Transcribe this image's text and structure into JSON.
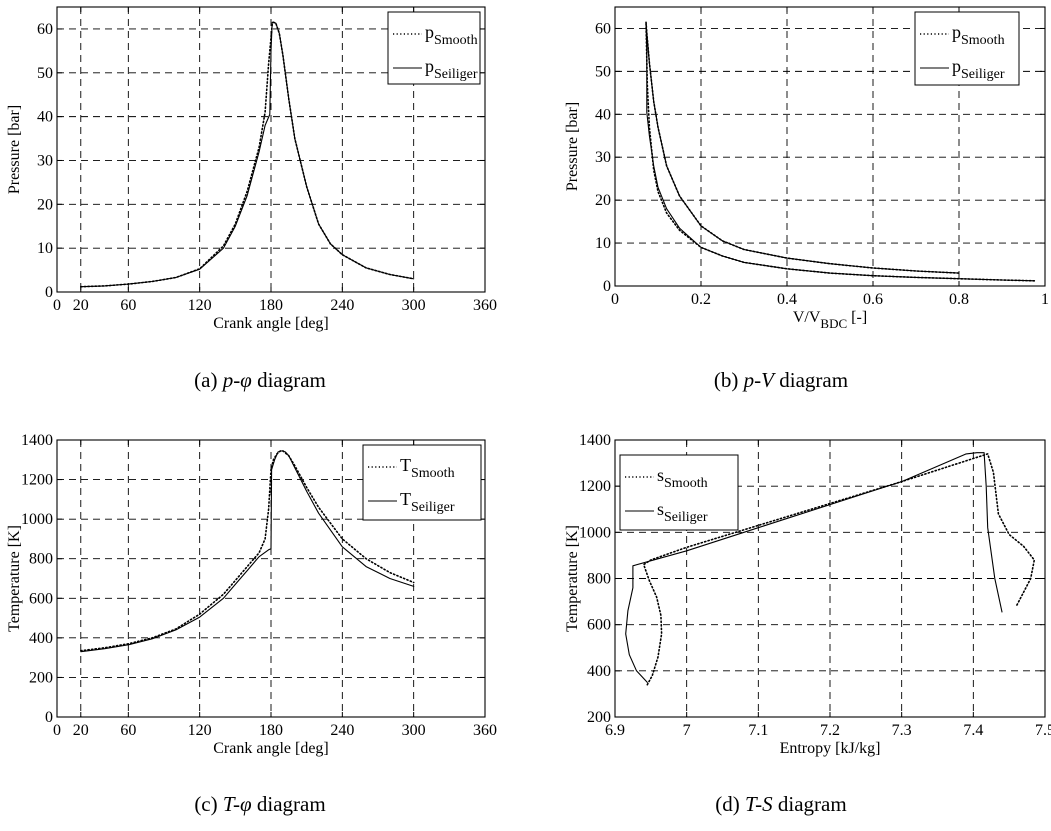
{
  "captions": [
    {
      "label": "(a)",
      "italic": "p-φ",
      "rest": " diagram"
    },
    {
      "label": "(b)",
      "italic": "p-V",
      "rest": " diagram"
    },
    {
      "label": "(c)",
      "italic": "T-φ",
      "rest": " diagram"
    },
    {
      "label": "(d)",
      "italic": "T-S",
      "rest": " diagram"
    }
  ],
  "chart_data": [
    {
      "type": "line",
      "xlabel": "Crank angle [deg]",
      "ylabel": "Pressure [bar]",
      "xlim": [
        0,
        360
      ],
      "ylim": [
        0,
        65
      ],
      "xticks": [
        0,
        20,
        60,
        120,
        180,
        240,
        300,
        360
      ],
      "xtick_labels": [
        "0",
        "20",
        "60",
        "120",
        "180",
        "240",
        "300",
        "360"
      ],
      "yticks": [
        0,
        10,
        20,
        30,
        40,
        50,
        60
      ],
      "grid": true,
      "legend": "top-right",
      "series": [
        {
          "base": "p",
          "sub": "Smooth",
          "style": "dotted",
          "x": [
            20,
            40,
            60,
            80,
            100,
            120,
            140,
            150,
            160,
            170,
            175,
            178,
            180,
            181,
            182,
            184,
            187,
            190,
            195,
            200,
            210,
            220,
            230,
            240,
            260,
            280,
            300
          ],
          "y": [
            1.2,
            1.4,
            1.8,
            2.4,
            3.3,
            5.3,
            10.5,
            15.5,
            23,
            33,
            41,
            52,
            58,
            61,
            61.5,
            61.3,
            59,
            54,
            44,
            35,
            24,
            15.5,
            11,
            8.5,
            5.5,
            4,
            3
          ]
        },
        {
          "base": "p",
          "sub": "Seiliger",
          "style": "solid",
          "x": [
            20,
            40,
            60,
            80,
            100,
            120,
            140,
            150,
            160,
            170,
            175,
            179,
            180,
            181,
            182,
            184,
            187,
            190,
            195,
            200,
            210,
            220,
            230,
            240,
            260,
            280,
            300
          ],
          "y": [
            1.2,
            1.4,
            1.8,
            2.4,
            3.3,
            5.2,
            10,
            15,
            22,
            32,
            38,
            40.5,
            55,
            61.5,
            61.5,
            61.3,
            59,
            54,
            44,
            35,
            24,
            15.5,
            11,
            8.5,
            5.5,
            4,
            3
          ]
        }
      ]
    },
    {
      "type": "line",
      "xlabel": "V/V",
      "xlabel_sub": "BDC",
      "xlabel_suffix": " [-]",
      "ylabel": "Pressure [bar]",
      "xlim": [
        0,
        1
      ],
      "ylim": [
        0,
        65
      ],
      "xticks": [
        0,
        0.2,
        0.4,
        0.6,
        0.8,
        1
      ],
      "xtick_labels": [
        "0",
        "0.2",
        "0.4",
        "0.6",
        "0.8",
        "1"
      ],
      "yticks": [
        0,
        10,
        20,
        30,
        40,
        50,
        60
      ],
      "grid": true,
      "legend": "top-right",
      "series": [
        {
          "base": "p",
          "sub": "Smooth",
          "style": "dotted",
          "x": [
            0.975,
            0.9,
            0.8,
            0.7,
            0.6,
            0.5,
            0.4,
            0.3,
            0.25,
            0.2,
            0.15,
            0.12,
            0.1,
            0.09,
            0.08,
            0.075,
            0.072,
            0.074,
            0.08,
            0.09,
            0.1,
            0.12,
            0.15,
            0.2,
            0.25,
            0.3,
            0.4,
            0.5,
            0.6,
            0.7,
            0.8
          ],
          "y": [
            1.2,
            1.4,
            1.7,
            2,
            2.4,
            3,
            4,
            5.5,
            7,
            9,
            13,
            17,
            22,
            27,
            37,
            47,
            61.5,
            59,
            52,
            43,
            37,
            28,
            21,
            14,
            10.5,
            8.5,
            6.5,
            5.2,
            4.2,
            3.5,
            3
          ]
        },
        {
          "base": "p",
          "sub": "Seiliger",
          "style": "solid",
          "x": [
            0.975,
            0.9,
            0.8,
            0.7,
            0.6,
            0.5,
            0.4,
            0.3,
            0.25,
            0.2,
            0.15,
            0.12,
            0.1,
            0.09,
            0.08,
            0.074,
            0.074,
            0.072,
            0.074,
            0.08,
            0.09,
            0.1,
            0.12,
            0.15,
            0.2,
            0.25,
            0.3,
            0.4,
            0.5,
            0.6,
            0.7,
            0.8
          ],
          "y": [
            1.2,
            1.4,
            1.7,
            2,
            2.4,
            3,
            4,
            5.5,
            7,
            9,
            13.5,
            18,
            23,
            28,
            35,
            40.5,
            55,
            61.5,
            59,
            52,
            43,
            37,
            28,
            21,
            14,
            10.5,
            8.5,
            6.5,
            5.2,
            4.2,
            3.5,
            3
          ]
        }
      ]
    },
    {
      "type": "line",
      "xlabel": "Crank angle [deg]",
      "ylabel": "Temperature [K]",
      "xlim": [
        0,
        360
      ],
      "ylim": [
        0,
        1400
      ],
      "xticks": [
        0,
        20,
        60,
        120,
        180,
        240,
        300,
        360
      ],
      "xtick_labels": [
        "0",
        "20",
        "60",
        "120",
        "180",
        "240",
        "300",
        "360"
      ],
      "yticks": [
        0,
        200,
        400,
        600,
        800,
        1000,
        1200,
        1400
      ],
      "grid": true,
      "legend": "top-right",
      "series": [
        {
          "base": "T",
          "sub": "Smooth",
          "style": "dotted",
          "x": [
            20,
            40,
            60,
            80,
            100,
            120,
            140,
            150,
            160,
            170,
            175,
            178,
            180,
            182,
            185,
            188,
            190,
            195,
            200,
            210,
            220,
            240,
            260,
            280,
            300
          ],
          "y": [
            335,
            350,
            370,
            400,
            445,
            520,
            620,
            690,
            760,
            830,
            900,
            1050,
            1250,
            1300,
            1330,
            1345,
            1345,
            1320,
            1270,
            1160,
            1060,
            900,
            800,
            730,
            680
          ]
        },
        {
          "base": "T",
          "sub": "Seiliger",
          "style": "solid",
          "x": [
            20,
            40,
            60,
            80,
            100,
            120,
            140,
            150,
            160,
            170,
            178,
            180,
            180.5,
            183,
            186,
            189,
            192,
            195,
            200,
            210,
            220,
            240,
            260,
            280,
            300
          ],
          "y": [
            330,
            345,
            365,
            395,
            440,
            505,
            600,
            670,
            740,
            810,
            845,
            850,
            1250,
            1300,
            1340,
            1345,
            1340,
            1320,
            1260,
            1140,
            1030,
            860,
            760,
            700,
            660
          ]
        }
      ]
    },
    {
      "type": "line",
      "xlabel": "Entropy [kJ/kg]",
      "ylabel": "Temperature [K]",
      "xlim": [
        6.9,
        7.5
      ],
      "ylim": [
        200,
        1400
      ],
      "xticks": [
        6.9,
        7,
        7.1,
        7.2,
        7.3,
        7.4,
        7.5
      ],
      "xtick_labels": [
        "6.9",
        "7",
        "7.1",
        "7.2",
        "7.3",
        "7.4",
        "7.5"
      ],
      "yticks": [
        200,
        400,
        600,
        800,
        1000,
        1200,
        1400
      ],
      "grid": true,
      "legend": "top-left",
      "series": [
        {
          "base": "s",
          "sub": "Smooth",
          "style": "dotted",
          "x": [
            6.945,
            6.952,
            6.96,
            6.965,
            6.964,
            6.958,
            6.948,
            6.94,
            6.95,
            7.0,
            7.1,
            7.2,
            7.3,
            7.4,
            7.42,
            7.428,
            7.435,
            7.45,
            7.47,
            7.485,
            7.48,
            7.47,
            7.46
          ],
          "y": [
            340,
            380,
            460,
            560,
            640,
            720,
            790,
            860,
            880,
            935,
            1030,
            1125,
            1220,
            1320,
            1340,
            1260,
            1080,
            990,
            940,
            880,
            800,
            740,
            680
          ]
        },
        {
          "base": "s",
          "sub": "Seiliger",
          "style": "solid",
          "x": [
            6.945,
            6.93,
            6.92,
            6.915,
            6.918,
            6.925,
            6.925,
            7.0,
            7.1,
            7.2,
            7.3,
            7.39,
            7.405,
            7.415,
            7.418,
            7.42,
            7.43,
            7.44
          ],
          "y": [
            350,
            400,
            470,
            560,
            660,
            760,
            855,
            920,
            1020,
            1120,
            1220,
            1340,
            1345,
            1345,
            1200,
            1020,
            800,
            655
          ]
        }
      ]
    }
  ]
}
